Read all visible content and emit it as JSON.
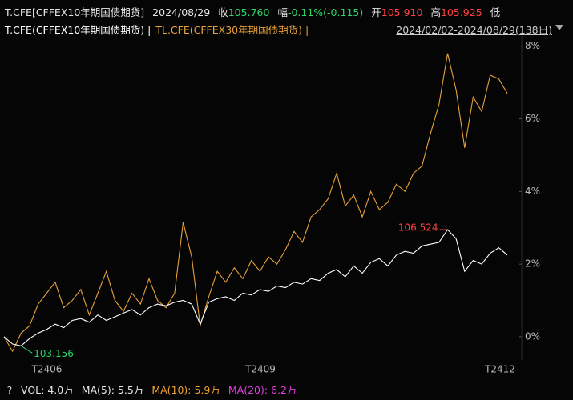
{
  "header": {
    "items": [
      {
        "text": "T.CFE[CFFEX10年期国债期货]",
        "color": "#e6e6e6"
      },
      {
        "text": "2024/08/29",
        "color": "#e6e6e6"
      },
      {
        "text": "收",
        "color": "#e6e6e6"
      },
      {
        "text": "105.760",
        "color": "#2fd36a"
      },
      {
        "text": "幅",
        "color": "#e6e6e6"
      },
      {
        "text": "-0.11%(-0.115)",
        "color": "#2fd36a"
      },
      {
        "text": "开",
        "color": "#e6e6e6"
      },
      {
        "text": "105.910",
        "color": "#ff4040"
      },
      {
        "text": "高",
        "color": "#e6e6e6"
      },
      {
        "text": "105.925",
        "color": "#ff4040"
      },
      {
        "text": "低",
        "color": "#e6e6e6"
      }
    ],
    "range": "2024/02/02-2024/08/29(138日)"
  },
  "chart_data": {
    "type": "line",
    "series": [
      {
        "name": "T.CFE(CFFEX10年期国债期货) |",
        "color": "#ffffff",
        "values": [
          0,
          -0.2,
          -0.25,
          -0.05,
          0.1,
          0.2,
          0.35,
          0.25,
          0.45,
          0.5,
          0.4,
          0.6,
          0.45,
          0.55,
          0.65,
          0.75,
          0.6,
          0.8,
          0.9,
          0.85,
          0.95,
          1.0,
          0.9,
          0.35,
          0.95,
          1.05,
          1.1,
          1.0,
          1.2,
          1.15,
          1.3,
          1.25,
          1.4,
          1.35,
          1.5,
          1.45,
          1.6,
          1.55,
          1.75,
          1.85,
          1.65,
          1.95,
          1.75,
          2.05,
          2.15,
          1.95,
          2.25,
          2.35,
          2.3,
          2.5,
          2.55,
          2.6,
          2.95,
          2.7,
          1.8,
          2.1,
          2.0,
          2.3,
          2.45,
          2.25
        ]
      },
      {
        "name": "TL.CFE(CFFEX30年期国债期货) |",
        "color": "#e8a23a",
        "values": [
          0,
          -0.4,
          0.1,
          0.3,
          0.9,
          1.2,
          1.5,
          0.8,
          1.0,
          1.3,
          0.6,
          1.2,
          1.8,
          1.0,
          0.7,
          1.2,
          0.9,
          1.6,
          1.0,
          0.8,
          1.2,
          3.15,
          2.2,
          0.3,
          1.1,
          1.8,
          1.5,
          1.9,
          1.6,
          2.1,
          1.8,
          2.2,
          2.0,
          2.4,
          2.9,
          2.6,
          3.3,
          3.5,
          3.8,
          4.5,
          3.6,
          3.9,
          3.3,
          4.0,
          3.5,
          3.7,
          4.2,
          4.0,
          4.5,
          4.7,
          5.6,
          6.4,
          7.8,
          6.8,
          5.2,
          6.6,
          6.2,
          7.2,
          7.1,
          6.7
        ]
      }
    ],
    "annotations": [
      {
        "text": "106.524",
        "color": "#ff4040"
      },
      {
        "text": "103.156",
        "color": "#2fd36a"
      }
    ],
    "xlabels": [
      "T2406",
      "T2409",
      "T2412"
    ],
    "ylim": [
      -0.64,
      8.28
    ],
    "yticks": [
      {
        "value": 0,
        "label": "0%"
      },
      {
        "value": 2,
        "label": "2%"
      },
      {
        "value": 4,
        "label": "4%"
      },
      {
        "value": 6,
        "label": "6%"
      },
      {
        "value": 8,
        "label": "8%"
      }
    ],
    "grid": false
  },
  "footer": {
    "help": "?",
    "indicators": [
      {
        "text": "VOL: 4.0万",
        "color": "#e6e6e6"
      },
      {
        "text": "MA(5): 5.5万",
        "color": "#e6e6e6"
      },
      {
        "text": "MA(10): 5.9万",
        "color": "#f0a030"
      },
      {
        "text": "MA(20): 6.2万",
        "color": "#e040e0"
      }
    ]
  }
}
